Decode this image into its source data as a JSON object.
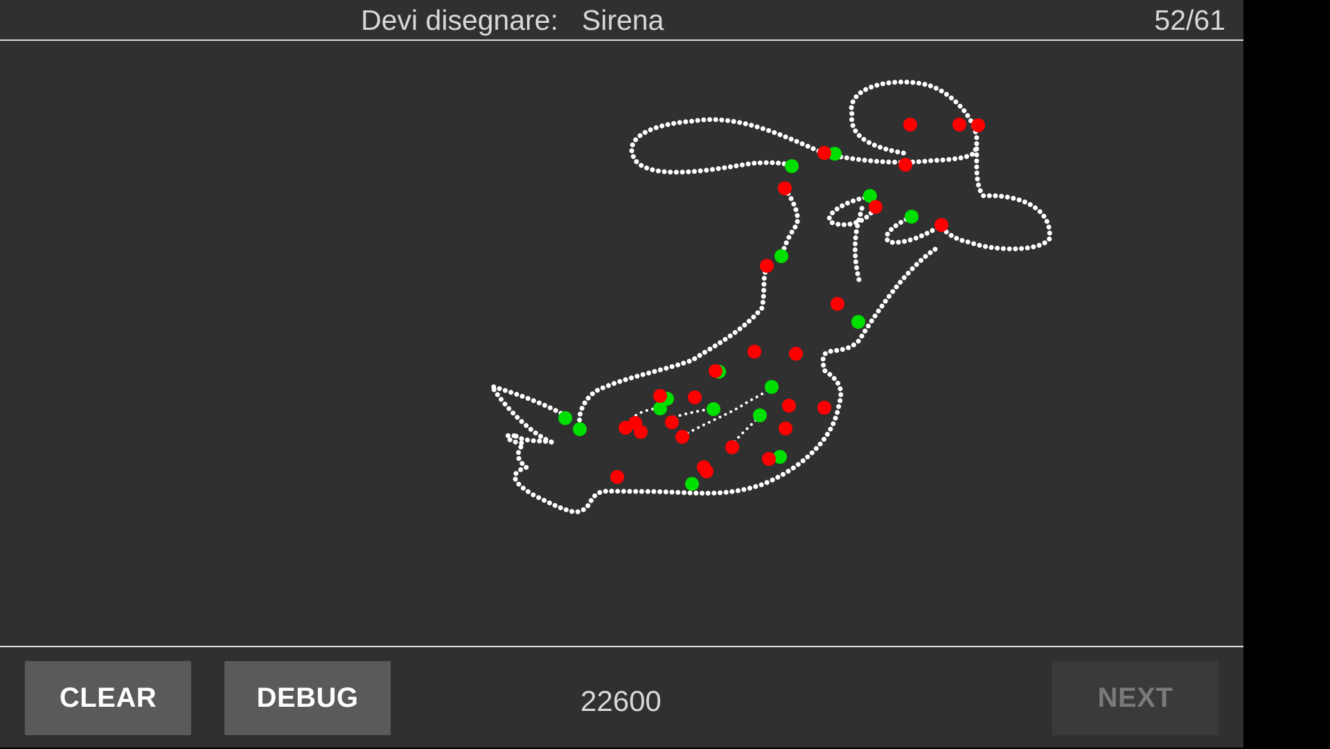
{
  "header": {
    "prompt_label": "Devi disegnare:",
    "target_word": "Sirena",
    "progress": "52/61"
  },
  "footer": {
    "clear_label": "CLEAR",
    "debug_label": "DEBUG",
    "score": "22600",
    "next_label": "NEXT"
  },
  "colors": {
    "background": "#303030",
    "stroke": "#ffffff",
    "stroke_start_marker": "#00e000",
    "stroke_end_marker": "#ff0000"
  }
}
